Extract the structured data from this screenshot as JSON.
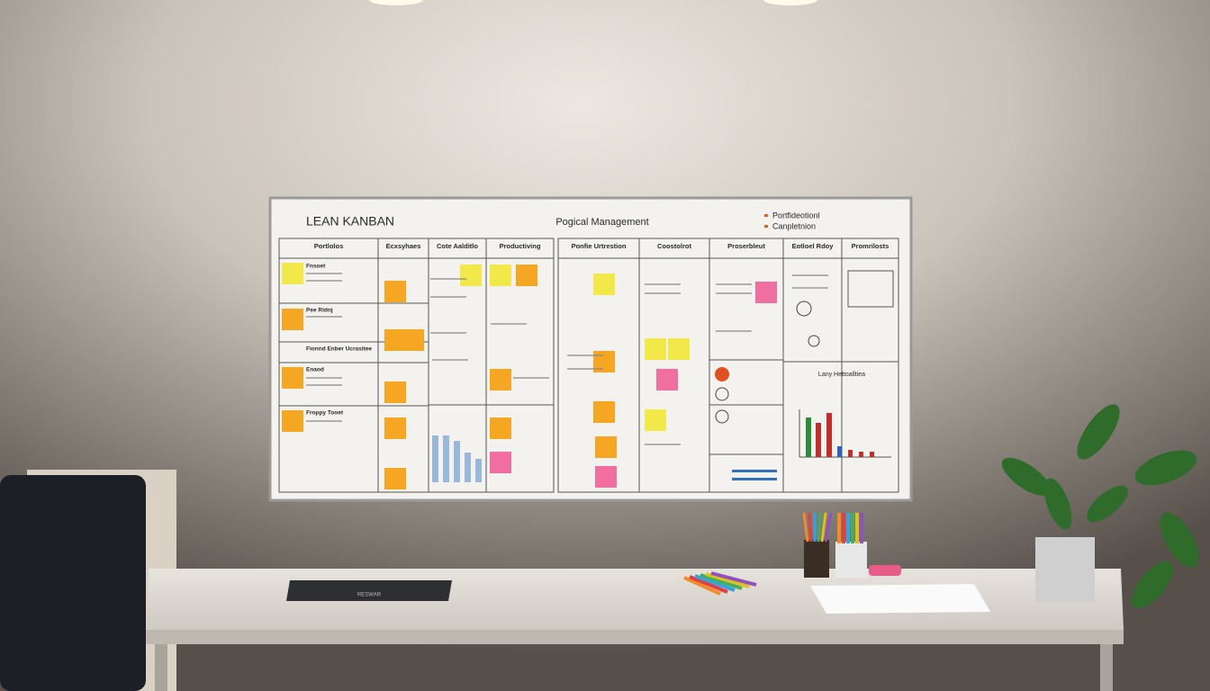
{
  "board": {
    "title": "LEAN KANBAN",
    "subtitle": "Pogical Management",
    "legend": [
      "Portfideotionl",
      "Canpletnion"
    ],
    "columns": [
      "Portlolos",
      "Ecxsyhaes",
      "Cote Aalditlo",
      "Productiving",
      "Ponfie Urtrestion",
      "Coostolrot",
      "Proserbleut",
      "Eotloel Rdoy",
      "Promrilosts"
    ],
    "rows": [
      "Fnsoet",
      "Pee Ridnj",
      "Fionnd Enber Ucrasitee",
      "Enaod",
      "Froppy Tooet"
    ],
    "chart_title": "Lany Hettoalltiea"
  },
  "desk": {
    "book": "RESWAR"
  }
}
